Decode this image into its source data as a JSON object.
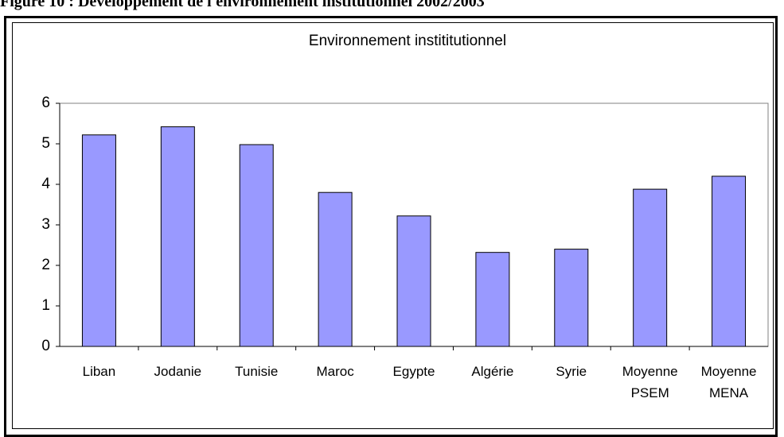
{
  "caption": "Figure 10 : Développement de l'environnement institutionnel 2002/2003",
  "chart_data": {
    "type": "bar",
    "title": "Environnement instititutionnel",
    "categories": [
      "Liban",
      "Jodanie",
      "Tunisie",
      "Maroc",
      "Egypte",
      "Algérie",
      "Syrie",
      "Moyenne PSEM",
      "Moyenne MENA"
    ],
    "values": [
      5.22,
      5.42,
      4.98,
      3.8,
      3.22,
      2.32,
      2.4,
      3.88,
      4.2
    ],
    "color": "#9999ff",
    "ylim": [
      0,
      6
    ],
    "yticks": [
      0,
      1,
      2,
      3,
      4,
      5,
      6
    ],
    "grid": false
  }
}
